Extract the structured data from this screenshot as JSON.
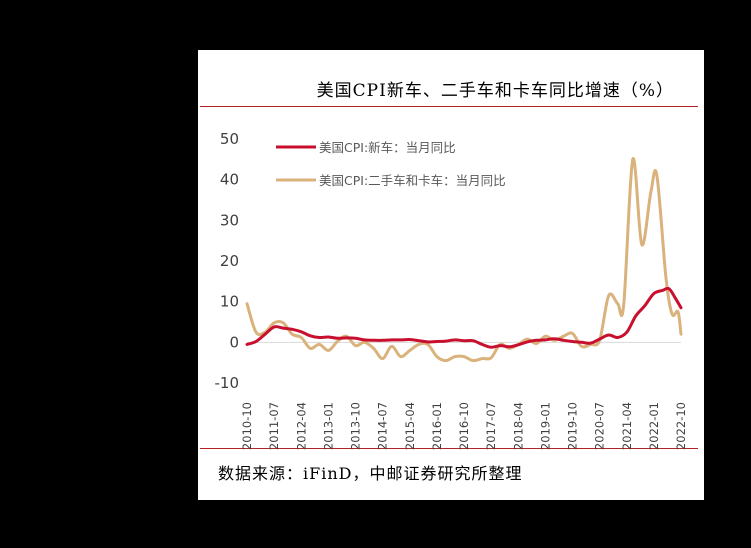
{
  "title": "美国CPI新车、二手车和卡车同比增速（%）",
  "source": "数据来源：iFinD，中邮证券研究所整理",
  "colors": {
    "new_car": "#c8102e",
    "used_car": "#d9b27c",
    "rule": "#b22222"
  },
  "chart_data": {
    "type": "line",
    "title": "美国CPI新车、二手车和卡车同比增速（%）",
    "xlabel": "",
    "ylabel": "",
    "ylim": [
      -10,
      50
    ],
    "yticks": [
      -10,
      0,
      10,
      20,
      30,
      40,
      50
    ],
    "x_ticks": [
      "2010-10",
      "2011-07",
      "2012-04",
      "2013-01",
      "2013-10",
      "2014-07",
      "2015-04",
      "2016-01",
      "2016-10",
      "2017-07",
      "2018-04",
      "2019-01",
      "2019-10",
      "2020-07",
      "2021-04",
      "2022-01",
      "2022-10"
    ],
    "grid": false,
    "legend_position": "top-left",
    "series": [
      {
        "name": "美国CPI:新车：当月同比",
        "color": "#c8102e",
        "points": [
          [
            "2010-10",
            -0.5
          ],
          [
            "2011-01",
            0.2
          ],
          [
            "2011-04",
            2.0
          ],
          [
            "2011-07",
            3.8
          ],
          [
            "2011-10",
            3.5
          ],
          [
            "2012-01",
            3.2
          ],
          [
            "2012-04",
            2.6
          ],
          [
            "2012-07",
            1.6
          ],
          [
            "2012-10",
            1.2
          ],
          [
            "2013-01",
            1.3
          ],
          [
            "2013-04",
            1.0
          ],
          [
            "2013-07",
            1.1
          ],
          [
            "2013-10",
            1.0
          ],
          [
            "2014-01",
            0.6
          ],
          [
            "2014-04",
            0.5
          ],
          [
            "2014-07",
            0.5
          ],
          [
            "2014-10",
            0.6
          ],
          [
            "2015-01",
            0.6
          ],
          [
            "2015-04",
            0.7
          ],
          [
            "2015-07",
            0.4
          ],
          [
            "2015-10",
            0.1
          ],
          [
            "2016-01",
            0.2
          ],
          [
            "2016-04",
            0.3
          ],
          [
            "2016-07",
            0.6
          ],
          [
            "2016-10",
            0.4
          ],
          [
            "2017-01",
            0.4
          ],
          [
            "2017-04",
            -0.5
          ],
          [
            "2017-07",
            -1.2
          ],
          [
            "2017-10",
            -0.8
          ],
          [
            "2018-01",
            -1.1
          ],
          [
            "2018-04",
            -0.6
          ],
          [
            "2018-07",
            0.1
          ],
          [
            "2018-10",
            0.5
          ],
          [
            "2019-01",
            0.6
          ],
          [
            "2019-04",
            0.9
          ],
          [
            "2019-07",
            0.5
          ],
          [
            "2019-10",
            0.2
          ],
          [
            "2020-01",
            0.0
          ],
          [
            "2020-04",
            -0.2
          ],
          [
            "2020-07",
            0.8
          ],
          [
            "2020-10",
            1.8
          ],
          [
            "2021-01",
            1.2
          ],
          [
            "2021-04",
            2.5
          ],
          [
            "2021-07",
            6.5
          ],
          [
            "2021-10",
            9.0
          ],
          [
            "2022-01",
            12.0
          ],
          [
            "2022-04",
            12.8
          ],
          [
            "2022-06",
            13.2
          ],
          [
            "2022-08",
            11.0
          ],
          [
            "2022-10",
            8.5
          ]
        ]
      },
      {
        "name": "美国CPI:二手车和卡车：当月同比",
        "color": "#d9b27c",
        "points": [
          [
            "2010-10",
            9.5
          ],
          [
            "2011-01",
            2.5
          ],
          [
            "2011-04",
            2.5
          ],
          [
            "2011-07",
            4.8
          ],
          [
            "2011-10",
            4.8
          ],
          [
            "2012-01",
            2.0
          ],
          [
            "2012-04",
            1.2
          ],
          [
            "2012-07",
            -1.5
          ],
          [
            "2012-10",
            -0.5
          ],
          [
            "2013-01",
            -2.0
          ],
          [
            "2013-04",
            0.2
          ],
          [
            "2013-07",
            1.5
          ],
          [
            "2013-10",
            -0.8
          ],
          [
            "2014-01",
            0.0
          ],
          [
            "2014-04",
            -1.5
          ],
          [
            "2014-07",
            -4.0
          ],
          [
            "2014-10",
            -1.0
          ],
          [
            "2015-01",
            -3.5
          ],
          [
            "2015-04",
            -2.0
          ],
          [
            "2015-07",
            -0.5
          ],
          [
            "2015-10",
            -0.5
          ],
          [
            "2016-01",
            -3.5
          ],
          [
            "2016-04",
            -4.5
          ],
          [
            "2016-07",
            -3.5
          ],
          [
            "2016-10",
            -3.5
          ],
          [
            "2017-01",
            -4.5
          ],
          [
            "2017-04",
            -4.0
          ],
          [
            "2017-07",
            -3.8
          ],
          [
            "2017-10",
            -0.5
          ],
          [
            "2018-01",
            -1.5
          ],
          [
            "2018-04",
            -0.5
          ],
          [
            "2018-07",
            0.8
          ],
          [
            "2018-10",
            -0.3
          ],
          [
            "2019-01",
            1.5
          ],
          [
            "2019-04",
            0.5
          ],
          [
            "2019-07",
            1.5
          ],
          [
            "2019-10",
            2.2
          ],
          [
            "2020-01",
            -1.0
          ],
          [
            "2020-04",
            -0.5
          ],
          [
            "2020-07",
            0.5
          ],
          [
            "2020-10",
            11.5
          ],
          [
            "2021-01",
            9.5
          ],
          [
            "2021-03",
            9.2
          ],
          [
            "2021-06",
            45.0
          ],
          [
            "2021-09",
            24.0
          ],
          [
            "2021-12",
            37.0
          ],
          [
            "2022-02",
            41.0
          ],
          [
            "2022-05",
            16.0
          ],
          [
            "2022-07",
            7.0
          ],
          [
            "2022-09",
            7.5
          ],
          [
            "2022-10",
            2.0
          ]
        ]
      }
    ]
  }
}
